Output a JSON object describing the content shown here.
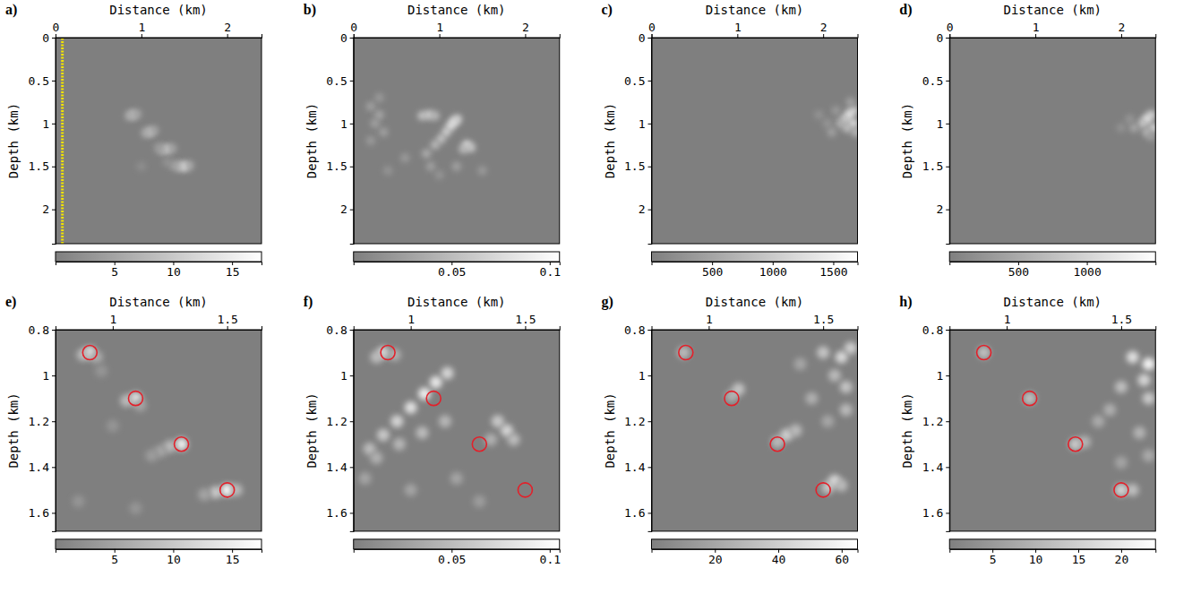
{
  "chart_data": [
    {
      "type": "heatmap",
      "label": "a)",
      "x_label": "Distance (km)",
      "y_label": "Depth (km)",
      "xlim": [
        0,
        2.4
      ],
      "ylim": [
        2.4,
        0
      ],
      "xticks": [
        0,
        1,
        2
      ],
      "yticks": [
        0,
        0.5,
        1,
        1.5,
        2
      ],
      "colorbar": {
        "range": [
          0,
          17.5
        ],
        "ticks": [
          5,
          10,
          15
        ]
      },
      "receivers": {
        "x": 0.08,
        "color": "#f2e400",
        "line_style": "dotted"
      },
      "cells": [
        [
          0.9,
          0.9,
          11
        ],
        [
          0.86,
          0.91,
          6
        ],
        [
          0.95,
          0.89,
          5
        ],
        [
          1.1,
          1.1,
          12
        ],
        [
          1.05,
          1.11,
          6
        ],
        [
          1.15,
          1.08,
          5
        ],
        [
          1.3,
          1.3,
          13
        ],
        [
          1.24,
          1.31,
          7
        ],
        [
          1.2,
          1.28,
          4
        ],
        [
          1.36,
          1.29,
          5
        ],
        [
          1.5,
          1.5,
          16
        ],
        [
          1.44,
          1.5,
          9
        ],
        [
          1.38,
          1.49,
          5
        ],
        [
          1.56,
          1.49,
          6
        ],
        [
          1.3,
          1.45,
          3
        ],
        [
          1.0,
          1.5,
          2.5
        ]
      ]
    },
    {
      "type": "heatmap",
      "label": "b)",
      "x_label": "Distance (km)",
      "y_label": "Depth (km)",
      "xlim": [
        0,
        2.4
      ],
      "ylim": [
        2.4,
        0
      ],
      "xticks": [
        0,
        1,
        2
      ],
      "yticks": [
        0,
        0.5,
        1,
        1.5,
        2
      ],
      "colorbar": {
        "range": [
          0,
          0.105
        ],
        "ticks": [
          0.05,
          0.1
        ]
      },
      "cells": [
        [
          0.2,
          0.8,
          0.03
        ],
        [
          0.3,
          0.9,
          0.035
        ],
        [
          0.25,
          1.0,
          0.03
        ],
        [
          0.35,
          1.1,
          0.03
        ],
        [
          0.2,
          1.2,
          0.025
        ],
        [
          0.3,
          0.7,
          0.025
        ],
        [
          0.8,
          0.91,
          0.06
        ],
        [
          0.88,
          0.9,
          0.07
        ],
        [
          0.95,
          0.91,
          0.05
        ],
        [
          0.85,
          1.35,
          0.04
        ],
        [
          0.95,
          1.25,
          0.05
        ],
        [
          1.02,
          1.18,
          0.06
        ],
        [
          1.08,
          1.1,
          0.07
        ],
        [
          1.13,
          1.03,
          0.08
        ],
        [
          1.17,
          0.98,
          0.09
        ],
        [
          1.21,
          0.95,
          0.07
        ],
        [
          1.32,
          1.25,
          0.08
        ],
        [
          1.37,
          1.28,
          0.06
        ],
        [
          1.28,
          1.3,
          0.05
        ],
        [
          0.6,
          1.4,
          0.025
        ],
        [
          0.9,
          1.5,
          0.03
        ],
        [
          1.2,
          1.5,
          0.03
        ],
        [
          1.5,
          1.55,
          0.025
        ],
        [
          0.4,
          1.55,
          0.02
        ],
        [
          1.0,
          1.6,
          0.02
        ]
      ]
    },
    {
      "type": "heatmap",
      "label": "c)",
      "x_label": "Distance (km)",
      "y_label": "Depth (km)",
      "xlim": [
        0,
        2.4
      ],
      "ylim": [
        2.4,
        0
      ],
      "xticks": [
        0,
        1,
        2
      ],
      "yticks": [
        0,
        0.5,
        1,
        1.5,
        2
      ],
      "colorbar": {
        "range": [
          0,
          1700
        ],
        "ticks": [
          500,
          1000,
          1500
        ]
      },
      "cells": [
        [
          2.35,
          0.85,
          1200
        ],
        [
          2.3,
          0.9,
          1500
        ],
        [
          2.25,
          0.95,
          1100
        ],
        [
          2.35,
          1.0,
          1400
        ],
        [
          2.2,
          1.0,
          700
        ],
        [
          2.28,
          1.05,
          900
        ],
        [
          2.1,
          1.1,
          500
        ],
        [
          2.38,
          1.1,
          800
        ],
        [
          2.15,
          0.85,
          400
        ],
        [
          1.95,
          0.9,
          300
        ],
        [
          2.05,
          1.0,
          350
        ],
        [
          2.32,
          0.75,
          500
        ]
      ]
    },
    {
      "type": "heatmap",
      "label": "d)",
      "x_label": "Distance (km)",
      "y_label": "Depth (km)",
      "xlim": [
        0,
        2.4
      ],
      "ylim": [
        2.4,
        0
      ],
      "xticks": [
        0,
        1,
        2
      ],
      "yticks": [
        0,
        0.5,
        1,
        1.5,
        2
      ],
      "colorbar": {
        "range": [
          0,
          1500
        ],
        "ticks": [
          500,
          1000
        ]
      },
      "cells": [
        [
          2.35,
          0.9,
          1000
        ],
        [
          2.3,
          0.95,
          1300
        ],
        [
          2.25,
          1.0,
          900
        ],
        [
          2.38,
          1.05,
          1100
        ],
        [
          2.15,
          1.05,
          500
        ],
        [
          2.3,
          1.1,
          700
        ],
        [
          2.1,
          0.95,
          300
        ],
        [
          2.0,
          1.05,
          250
        ],
        [
          2.35,
          1.15,
          400
        ]
      ]
    },
    {
      "type": "heatmap",
      "label": "e)",
      "x_label": "Distance (km)",
      "y_label": "Depth (km)",
      "xlim": [
        0.75,
        1.65
      ],
      "ylim": [
        1.68,
        0.8
      ],
      "xticks": [
        1,
        1.5
      ],
      "yticks": [
        0.8,
        1,
        1.2,
        1.4,
        1.6
      ],
      "colorbar": {
        "range": [
          0,
          17.5
        ],
        "ticks": [
          5,
          10,
          15
        ]
      },
      "sources": {
        "x": [
          0.9,
          1.1,
          1.3,
          1.5
        ],
        "z": [
          0.9,
          1.1,
          1.3,
          1.5
        ],
        "color": "#e3202a",
        "marker": "circle"
      },
      "cells": [
        [
          0.9,
          0.9,
          14
        ],
        [
          0.87,
          0.91,
          8
        ],
        [
          0.93,
          0.92,
          6
        ],
        [
          1.1,
          1.1,
          14
        ],
        [
          1.06,
          1.11,
          8
        ],
        [
          1.12,
          1.13,
          5
        ],
        [
          1.3,
          1.3,
          15
        ],
        [
          1.25,
          1.31,
          8
        ],
        [
          1.21,
          1.33,
          5
        ],
        [
          1.17,
          1.35,
          4
        ],
        [
          1.5,
          1.5,
          17
        ],
        [
          1.45,
          1.51,
          10
        ],
        [
          1.54,
          1.5,
          8
        ],
        [
          1.4,
          1.52,
          5
        ],
        [
          1.0,
          1.22,
          3
        ],
        [
          0.85,
          1.55,
          3
        ],
        [
          1.1,
          1.58,
          3
        ],
        [
          0.95,
          0.98,
          3
        ]
      ]
    },
    {
      "type": "heatmap",
      "label": "f)",
      "x_label": "Distance (km)",
      "y_label": "Depth (km)",
      "xlim": [
        0.75,
        1.65
      ],
      "ylim": [
        1.68,
        0.8
      ],
      "xticks": [
        1,
        1.5
      ],
      "yticks": [
        0.8,
        1,
        1.2,
        1.4,
        1.6
      ],
      "colorbar": {
        "range": [
          0,
          0.105
        ],
        "ticks": [
          0.05,
          0.1
        ]
      },
      "sources": {
        "x": [
          0.9,
          1.1,
          1.3,
          1.5
        ],
        "z": [
          0.9,
          1.1,
          1.3,
          1.5
        ],
        "color": "#e3202a",
        "marker": "circle"
      },
      "cells": [
        [
          0.88,
          0.9,
          0.07
        ],
        [
          0.85,
          0.92,
          0.05
        ],
        [
          0.93,
          0.91,
          0.04
        ],
        [
          0.82,
          1.32,
          0.05
        ],
        [
          0.88,
          1.26,
          0.06
        ],
        [
          0.94,
          1.2,
          0.07
        ],
        [
          1.0,
          1.14,
          0.08
        ],
        [
          1.06,
          1.08,
          0.09
        ],
        [
          1.11,
          1.03,
          0.085
        ],
        [
          1.16,
          0.99,
          0.07
        ],
        [
          0.85,
          1.36,
          0.04
        ],
        [
          0.95,
          1.3,
          0.045
        ],
        [
          1.05,
          1.25,
          0.05
        ],
        [
          1.15,
          1.2,
          0.045
        ],
        [
          1.38,
          1.2,
          0.06
        ],
        [
          1.42,
          1.24,
          0.07
        ],
        [
          1.45,
          1.28,
          0.05
        ],
        [
          1.35,
          1.28,
          0.04
        ],
        [
          1.2,
          1.45,
          0.03
        ],
        [
          1.0,
          1.5,
          0.03
        ],
        [
          1.3,
          1.55,
          0.025
        ],
        [
          0.8,
          1.45,
          0.03
        ]
      ]
    },
    {
      "type": "heatmap",
      "label": "g)",
      "x_label": "Distance (km)",
      "y_label": "Depth (km)",
      "xlim": [
        0.75,
        1.65
      ],
      "ylim": [
        1.68,
        0.8
      ],
      "xticks": [
        1,
        1.5
      ],
      "yticks": [
        0.8,
        1,
        1.2,
        1.4,
        1.6
      ],
      "colorbar": {
        "range": [
          0,
          65
        ],
        "ticks": [
          20,
          40,
          60
        ]
      },
      "sources": {
        "x": [
          0.9,
          1.1,
          1.3,
          1.5
        ],
        "z": [
          0.9,
          1.1,
          1.3,
          1.5
        ],
        "color": "#e3202a",
        "marker": "circle"
      },
      "cells": [
        [
          0.89,
          0.9,
          30
        ],
        [
          1.1,
          1.09,
          25
        ],
        [
          1.13,
          1.06,
          35
        ],
        [
          1.3,
          1.29,
          30
        ],
        [
          1.34,
          1.26,
          40
        ],
        [
          1.38,
          1.24,
          30
        ],
        [
          1.52,
          1.49,
          35
        ],
        [
          1.55,
          1.46,
          45
        ],
        [
          1.58,
          1.48,
          30
        ],
        [
          1.5,
          0.9,
          35
        ],
        [
          1.58,
          0.92,
          45
        ],
        [
          1.62,
          0.88,
          40
        ],
        [
          1.55,
          1.0,
          30
        ],
        [
          1.6,
          1.05,
          35
        ],
        [
          1.45,
          1.1,
          25
        ],
        [
          1.6,
          1.15,
          30
        ],
        [
          1.52,
          1.2,
          20
        ],
        [
          1.4,
          0.95,
          20
        ]
      ]
    },
    {
      "type": "heatmap",
      "label": "h)",
      "x_label": "Distance (km)",
      "y_label": "Depth (km)",
      "xlim": [
        0.75,
        1.65
      ],
      "ylim": [
        1.68,
        0.8
      ],
      "xticks": [
        1,
        1.5
      ],
      "yticks": [
        0.8,
        1,
        1.2,
        1.4,
        1.6
      ],
      "colorbar": {
        "range": [
          0,
          24
        ],
        "ticks": [
          5,
          10,
          15,
          20
        ]
      },
      "sources": {
        "x": [
          0.9,
          1.1,
          1.3,
          1.5
        ],
        "z": [
          0.9,
          1.1,
          1.3,
          1.5
        ],
        "color": "#e3202a",
        "marker": "circle"
      },
      "cells": [
        [
          0.9,
          0.9,
          12
        ],
        [
          1.1,
          1.1,
          12
        ],
        [
          1.3,
          1.3,
          14
        ],
        [
          1.34,
          1.29,
          10
        ],
        [
          1.5,
          1.5,
          16
        ],
        [
          1.55,
          1.5,
          12
        ],
        [
          1.55,
          0.92,
          18
        ],
        [
          1.62,
          0.95,
          22
        ],
        [
          1.6,
          1.02,
          16
        ],
        [
          1.5,
          1.05,
          12
        ],
        [
          1.62,
          1.1,
          14
        ],
        [
          1.45,
          1.15,
          9
        ],
        [
          1.4,
          1.2,
          8
        ],
        [
          1.58,
          1.25,
          10
        ],
        [
          1.62,
          1.35,
          8
        ],
        [
          1.5,
          1.38,
          7
        ]
      ]
    }
  ]
}
